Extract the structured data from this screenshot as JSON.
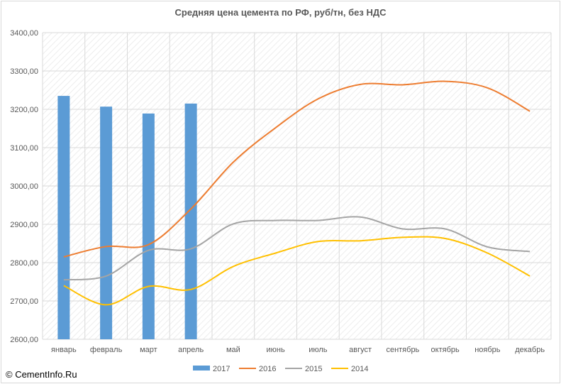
{
  "chart_data": {
    "type": "bar+line",
    "title": "Средняя цена цемента по РФ, руб/тн, без НДС",
    "categories": [
      "январь",
      "февраль",
      "март",
      "апрель",
      "май",
      "июнь",
      "июль",
      "август",
      "сентябрь",
      "октябрь",
      "ноябрь",
      "декабрь"
    ],
    "ylim": [
      2600,
      3400
    ],
    "yticks": [
      "2600,00",
      "2700,00",
      "2800,00",
      "2900,00",
      "3000,00",
      "3100,00",
      "3200,00",
      "3300,00",
      "3400,00"
    ],
    "grid": true,
    "legend_position": "bottom",
    "series": [
      {
        "name": "2017",
        "type": "bar",
        "color": "#5b9bd5",
        "values": [
          3235,
          3207,
          3189,
          3215,
          null,
          null,
          null,
          null,
          null,
          null,
          null,
          null
        ]
      },
      {
        "name": "2016",
        "type": "line",
        "color": "#ed7d31",
        "values": [
          2815,
          2842,
          2847,
          2940,
          3062,
          3152,
          3227,
          3265,
          3264,
          3273,
          3256,
          3195
        ]
      },
      {
        "name": "2015",
        "type": "line",
        "color": "#a5a5a5",
        "values": [
          2755,
          2765,
          2832,
          2836,
          2901,
          2910,
          2910,
          2919,
          2888,
          2888,
          2841,
          2829
        ]
      },
      {
        "name": "2014",
        "type": "line",
        "color": "#ffc000",
        "values": [
          2740,
          2690,
          2738,
          2730,
          2790,
          2825,
          2855,
          2857,
          2866,
          2863,
          2825,
          2765
        ]
      }
    ]
  },
  "copyright": "© CementInfo.Ru"
}
